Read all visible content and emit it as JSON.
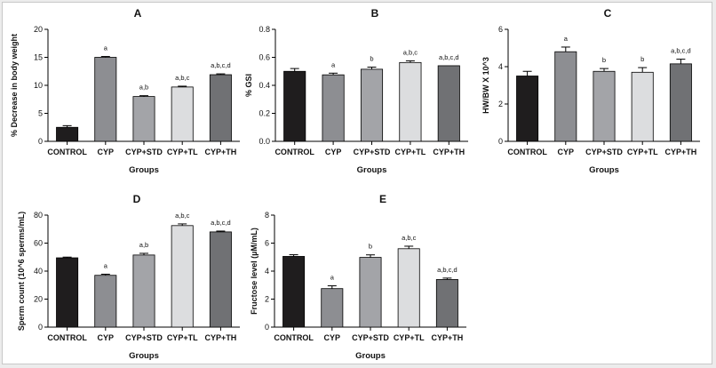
{
  "chart_data": [
    {
      "panel": "A",
      "type": "bar",
      "categories": [
        "CONTROL",
        "CYP",
        "CYP+STD",
        "CYP+TL",
        "CYP+TH"
      ],
      "values": [
        2.5,
        15.0,
        8.0,
        9.7,
        11.9
      ],
      "errors": [
        0.3,
        0.15,
        0.15,
        0.15,
        0.15
      ],
      "significance": [
        "",
        "a",
        "a,b",
        "a,b,c",
        "a,b,c,d"
      ],
      "xlabel": "Groups",
      "ylabel": "% Decrease in body weight",
      "ylim": [
        0,
        20
      ],
      "yticks": [
        0,
        5,
        10,
        15,
        20
      ],
      "ytick_labels": [
        "0",
        "5",
        "10",
        "15",
        "20"
      ]
    },
    {
      "panel": "B",
      "type": "bar",
      "categories": [
        "CONTROL",
        "CYP",
        "CYP+STD",
        "CYP+TL",
        "CYP+TH"
      ],
      "values": [
        0.5,
        0.475,
        0.515,
        0.563,
        0.54
      ],
      "errors": [
        0.02,
        0.012,
        0.015,
        0.012,
        0.0
      ],
      "significance": [
        "",
        "a",
        "b",
        "a,b,c",
        "a,b,c,d"
      ],
      "xlabel": "Groups",
      "ylabel": "% GSI",
      "ylim": [
        0,
        0.8
      ],
      "yticks": [
        0,
        0.2,
        0.4,
        0.6,
        0.8
      ],
      "ytick_labels": [
        "0.0",
        "0.2",
        "0.4",
        "0.6",
        "0.8"
      ]
    },
    {
      "panel": "C",
      "type": "bar",
      "categories": [
        "CONTROL",
        "CYP",
        "CYP+STD",
        "CYP+TL",
        "CYP+TH"
      ],
      "values": [
        3.5,
        4.8,
        3.75,
        3.7,
        4.15
      ],
      "errors": [
        0.25,
        0.25,
        0.15,
        0.25,
        0.25
      ],
      "significance": [
        "",
        "a",
        "b",
        "b",
        "a,b,c,d"
      ],
      "xlabel": "Groups",
      "ylabel": "HW/BW X 10^3",
      "ylim": [
        0,
        6
      ],
      "yticks": [
        0,
        2,
        4,
        6
      ],
      "ytick_labels": [
        "0",
        "2",
        "4",
        "6"
      ]
    },
    {
      "panel": "D",
      "type": "bar",
      "categories": [
        "CONTROL",
        "CYP",
        "CYP+STD",
        "CYP+TL",
        "CYP+TH"
      ],
      "values": [
        49.5,
        37.0,
        51.5,
        72.5,
        68.0
      ],
      "errors": [
        0.5,
        0.8,
        1.2,
        1.2,
        0.6
      ],
      "significance": [
        "",
        "a",
        "a,b",
        "a,b,c",
        "a,b,c,d"
      ],
      "xlabel": "Groups",
      "ylabel": "Sperm count (10^6 sperms/mL)",
      "ylim": [
        0,
        80
      ],
      "yticks": [
        0,
        20,
        40,
        60,
        80
      ],
      "ytick_labels": [
        "0",
        "20",
        "40",
        "60",
        "80"
      ]
    },
    {
      "panel": "E",
      "type": "bar",
      "categories": [
        "CONTROL",
        "CYP",
        "CYP+STD",
        "CYP+TL",
        "CYP+TH"
      ],
      "values": [
        5.05,
        2.75,
        4.98,
        5.6,
        3.4
      ],
      "errors": [
        0.12,
        0.2,
        0.18,
        0.18,
        0.1
      ],
      "significance": [
        "",
        "a",
        "b",
        "a,b,c",
        "a,b,c,d"
      ],
      "xlabel": "Groups",
      "ylabel": "Fructose level (µM/mL)",
      "ylim": [
        0,
        8
      ],
      "yticks": [
        0,
        2,
        4,
        6,
        8
      ],
      "ytick_labels": [
        "0",
        "2",
        "4",
        "6",
        "8"
      ]
    }
  ],
  "colors": {
    "bars": [
      "#1f1d1e",
      "#8d8e92",
      "#a3a4a8",
      "#dcdddf",
      "#707174"
    ],
    "axis": "#000000"
  }
}
